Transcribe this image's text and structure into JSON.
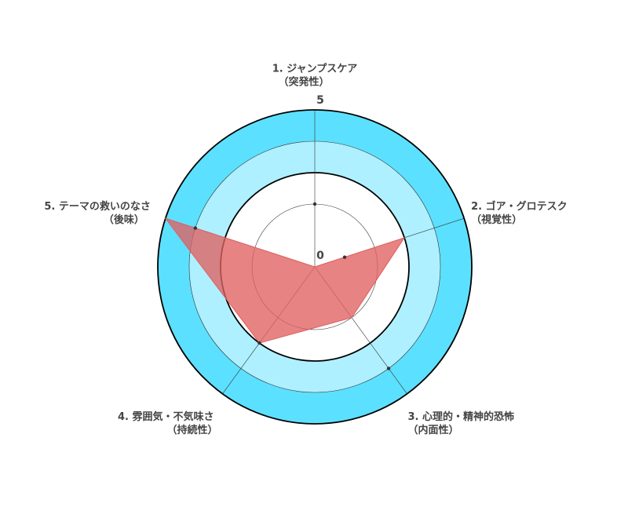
{
  "chart_data": {
    "type": "radar",
    "categories": [
      "1. ジャンプスケア",
      "2. ゴア・グロテスク",
      "3. 心理的・精神的恐怖",
      "4. 雰囲気・不気味さ",
      "5. テーマの救いのなさ"
    ],
    "category_notes": [
      "（突発性）",
      "（視覚性）",
      "（内面性）",
      "（持続性）",
      "（後味）"
    ],
    "series": [
      {
        "color": "#e06060",
        "values": [
          0,
          3,
          2,
          3,
          5
        ]
      },
      {
        "color": "#333333",
        "values": [
          2,
          1,
          4,
          3,
          4
        ]
      }
    ],
    "rlim": [
      0,
      5
    ],
    "rticks": [
      0,
      5
    ],
    "bands": [
      {
        "from": 4,
        "to": 5,
        "color": "#5ce0ff"
      },
      {
        "from": 3,
        "to": 4,
        "color": "#aef0ff"
      }
    ],
    "circles": [
      2,
      3,
      4,
      5
    ]
  }
}
